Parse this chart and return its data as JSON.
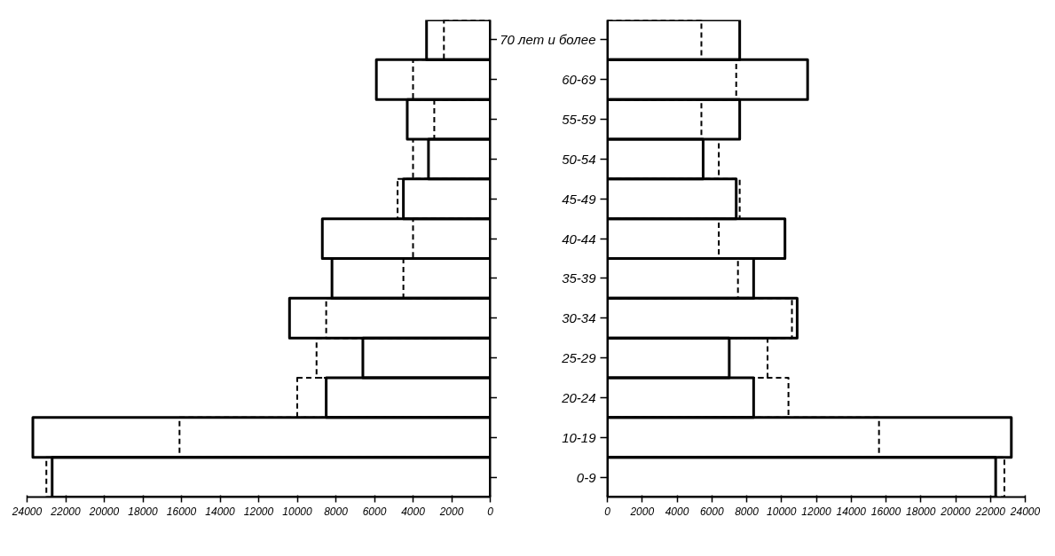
{
  "chart_data": [
    {
      "type": "bar",
      "orientation": "horizontal",
      "tick_labels": "x",
      "xlim": [
        24000,
        0
      ],
      "xticks": [
        24000,
        22000,
        20000,
        18000,
        16000,
        14000,
        12000,
        10000,
        8000,
        6000,
        4000,
        2000,
        0
      ],
      "series": [
        {
          "color": "#000000",
          "line_style": "solid",
          "values": [
            3300,
            5900,
            4300,
            3200,
            4500,
            8700,
            8200,
            10400,
            6600,
            8500,
            23700,
            22700
          ]
        },
        {
          "color": "#000000",
          "line_style": "dashed",
          "values": [
            2400,
            4000,
            2900,
            4000,
            4800,
            4000,
            4500,
            8500,
            9000,
            10000,
            16100,
            23000
          ]
        }
      ]
    },
    {
      "type": "bar",
      "orientation": "horizontal",
      "categories": [
        "70 лет и более",
        "60-69",
        "55-59",
        "50-54",
        "45-49",
        "40-44",
        "35-39",
        "30-34",
        "25-29",
        "20-24",
        "10-19",
        "0-9"
      ],
      "xlim": [
        0,
        24000
      ],
      "xticks": [
        0,
        2000,
        4000,
        6000,
        8000,
        10000,
        12000,
        14000,
        16000,
        18000,
        20000,
        22000,
        24000
      ],
      "series": [
        {
          "color": "#000000",
          "line_style": "solid",
          "values": [
            7600,
            11500,
            7600,
            5500,
            7400,
            10200,
            8400,
            10900,
            7000,
            8400,
            23200,
            22300
          ]
        },
        {
          "color": "#000000",
          "line_style": "dashed",
          "values": [
            5400,
            7400,
            5400,
            6400,
            7600,
            6400,
            7500,
            10600,
            9200,
            10400,
            15600,
            22800
          ]
        }
      ]
    }
  ]
}
